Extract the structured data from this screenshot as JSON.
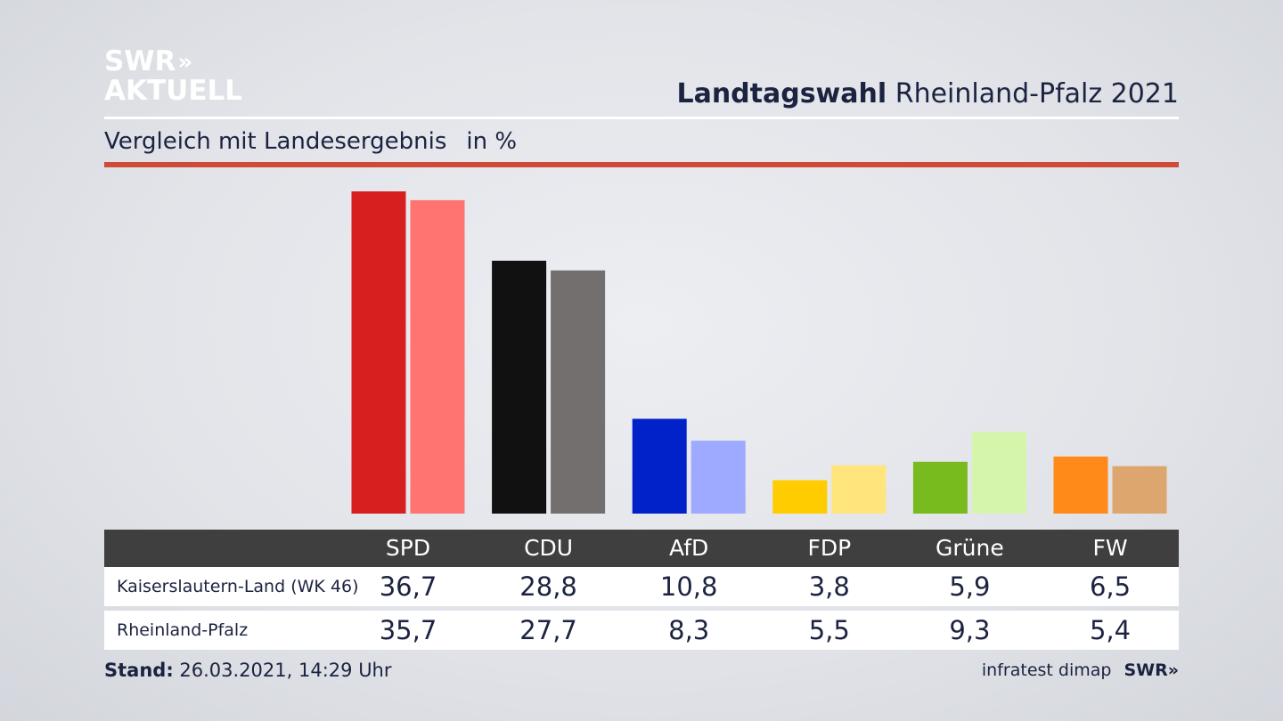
{
  "header": {
    "logo_line1": "SWR",
    "logo_chevrons": "»",
    "logo_line2": "AKTUELL",
    "title_bold": "Landtagswahl",
    "title_rest": "Rheinland-Pfalz 2021",
    "subtitle": "Vergleich mit Landesergebnis",
    "unit": "in %"
  },
  "colors": {
    "accent_rule": "#cf4a37",
    "table_header": "#3f3f3f"
  },
  "chart_data": {
    "type": "bar",
    "categories": [
      "SPD",
      "CDU",
      "AfD",
      "FDP",
      "Grüne",
      "FW"
    ],
    "series": [
      {
        "name": "Kaiserslautern-Land (WK 46)",
        "values": [
          36.7,
          28.8,
          10.8,
          3.8,
          5.9,
          6.5
        ],
        "labels": [
          "36,7",
          "28,8",
          "10,8",
          "3,8",
          "5,9",
          "6,5"
        ],
        "colors": [
          "#d71f20",
          "#111111",
          "#0022c8",
          "#ffcc00",
          "#77bb1f",
          "#ff8a1a"
        ]
      },
      {
        "name": "Rheinland-Pfalz",
        "values": [
          35.7,
          27.7,
          8.3,
          5.5,
          9.3,
          5.4
        ],
        "labels": [
          "35,7",
          "27,7",
          "8,3",
          "5,5",
          "9,3",
          "5,4"
        ],
        "colors": [
          "#ff7470",
          "#726f6e",
          "#9eaaff",
          "#ffe57c",
          "#d5f5ab",
          "#dea66f"
        ]
      }
    ],
    "ylim": [
      0,
      36.7
    ],
    "grid": false,
    "legend": "table-below"
  },
  "footer": {
    "stand_label": "Stand:",
    "stand_value": "26.03.2021, 14:29 Uhr",
    "source": "infratest dimap",
    "brand": "SWR»"
  }
}
